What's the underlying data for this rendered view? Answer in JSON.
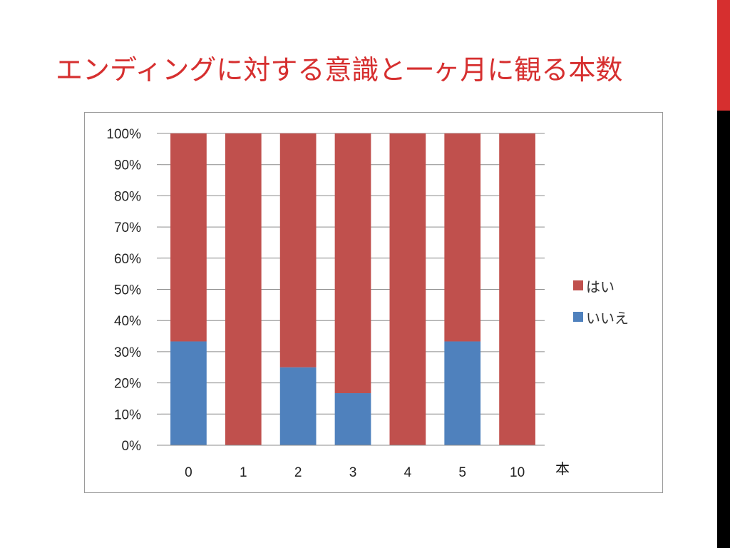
{
  "slide": {
    "title": "エンディングに対する意識と一ヶ月に観る本数",
    "accent_color": "#d62f2f"
  },
  "chart_data": {
    "type": "bar",
    "stacked": true,
    "categories": [
      "0",
      "1",
      "2",
      "3",
      "4",
      "5",
      "10"
    ],
    "series": [
      {
        "name": "いいえ",
        "color": "#4f81bd",
        "values": [
          33.3,
          0,
          25,
          16.7,
          0,
          33.3,
          0
        ]
      },
      {
        "name": "はい",
        "color": "#c0504d",
        "values": [
          66.7,
          100,
          75,
          83.3,
          100,
          66.7,
          100
        ]
      }
    ],
    "ylim": [
      0,
      100
    ],
    "yticks": [
      "0%",
      "10%",
      "20%",
      "30%",
      "40%",
      "50%",
      "60%",
      "70%",
      "80%",
      "90%",
      "100%"
    ],
    "xlabel": "本",
    "ylabel": "",
    "grid": true,
    "legend_position": "right",
    "legend": [
      {
        "label": "はい",
        "color": "#c0504d"
      },
      {
        "label": "いいえ",
        "color": "#4f81bd"
      }
    ]
  }
}
